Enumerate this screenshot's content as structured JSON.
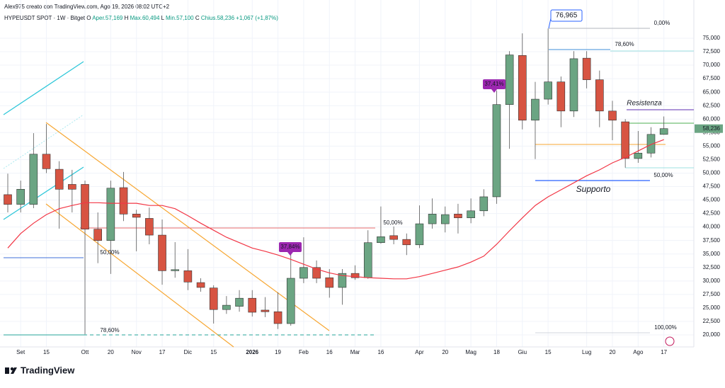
{
  "chart_data": {
    "type": "candlestick",
    "author_line": "Alex975 creato con TradingView.com, Ago 19, 2026 08:02 UTC+2",
    "symbol_line": "HYPEUSDT SPOT · 1W · Bitget",
    "ohlc_header": [
      "O",
      "Aper.57,169",
      "H",
      "Max.60,494",
      "L",
      "Min.57,100",
      "C",
      "Chius.58,236",
      "+1,067 (+1,87%)"
    ],
    "brand": "TradingView",
    "last_price_label": "58,236",
    "categories": [
      null,
      "Set",
      null,
      "15",
      null,
      null,
      "Ott",
      null,
      "20",
      null,
      "Nov",
      null,
      "17",
      null,
      "Dic",
      null,
      "15",
      null,
      null,
      "2026",
      null,
      "19",
      null,
      "Feb",
      null,
      "16",
      null,
      "Mar",
      null,
      "16",
      null,
      null,
      "Apr",
      null,
      "20",
      null,
      "Mag",
      null,
      "18",
      null,
      "Giu",
      null,
      "15",
      null,
      null,
      "Lug",
      null,
      "20",
      null,
      "Ago",
      null,
      "17"
    ],
    "ohlc": [
      [
        46000,
        49900,
        42700,
        44200
      ],
      [
        44200,
        48600,
        42700,
        47000
      ],
      [
        44200,
        57400,
        43500,
        53500
      ],
      [
        53500,
        59100,
        50000,
        50800
      ],
      [
        50700,
        52200,
        39700,
        47000
      ],
      [
        47900,
        50600,
        42700,
        47000
      ],
      [
        47900,
        48600,
        20100,
        39600
      ],
      [
        39600,
        42700,
        33300,
        37500
      ],
      [
        37500,
        48600,
        31300,
        47200
      ],
      [
        47300,
        50200,
        41100,
        42400
      ],
      [
        42400,
        43200,
        35500,
        41800
      ],
      [
        41600,
        43600,
        36800,
        38500
      ],
      [
        38500,
        41400,
        29300,
        31900
      ],
      [
        31900,
        37200,
        30600,
        32100
      ],
      [
        31900,
        35900,
        28300,
        29800
      ],
      [
        29700,
        30500,
        28000,
        28800
      ],
      [
        28700,
        29200,
        22100,
        24700
      ],
      [
        24700,
        27200,
        23900,
        25500
      ],
      [
        25300,
        28300,
        24300,
        26800
      ],
      [
        26800,
        28300,
        23400,
        24200
      ],
      [
        24600,
        27000,
        23300,
        24300
      ],
      [
        24300,
        27900,
        21100,
        22100
      ],
      [
        22100,
        35100,
        21700,
        30500
      ],
      [
        30500,
        38100,
        29600,
        32500
      ],
      [
        32500,
        33800,
        29600,
        30500
      ],
      [
        30600,
        32200,
        26900,
        28800
      ],
      [
        28800,
        32200,
        25600,
        31400
      ],
      [
        31400,
        32900,
        30200,
        30600
      ],
      [
        30600,
        39400,
        30400,
        37100
      ],
      [
        37100,
        43800,
        36900,
        38200
      ],
      [
        38400,
        40100,
        36800,
        37700
      ],
      [
        37700,
        38800,
        34800,
        36700
      ],
      [
        36700,
        44000,
        36100,
        40600
      ],
      [
        40600,
        45300,
        39700,
        42400
      ],
      [
        40600,
        43800,
        39000,
        42300
      ],
      [
        42400,
        44300,
        38800,
        41700
      ],
      [
        41700,
        45300,
        40700,
        43000
      ],
      [
        43000,
        47000,
        42000,
        45600
      ],
      [
        45600,
        65300,
        44300,
        62700
      ],
      [
        62700,
        72600,
        54500,
        71900
      ],
      [
        71800,
        75900,
        58100,
        59800
      ],
      [
        59800,
        66900,
        52600,
        63700
      ],
      [
        63700,
        76800,
        62700,
        66900
      ],
      [
        66900,
        67900,
        58500,
        61500
      ],
      [
        61500,
        72600,
        60400,
        71200
      ],
      [
        71300,
        72600,
        65700,
        67300
      ],
      [
        67300,
        69000,
        58500,
        61500
      ],
      [
        61500,
        63400,
        56100,
        59800
      ],
      [
        59500,
        60000,
        51000,
        52700
      ],
      [
        52700,
        57800,
        51900,
        53700
      ],
      [
        53700,
        58500,
        52900,
        57169
      ],
      [
        57169,
        60494,
        57100,
        58236
      ]
    ],
    "up_color": "#6ba583",
    "down_color": "#d75442",
    "moving_average": {
      "color": "#f23645",
      "values": [
        36100,
        38800,
        40700,
        42300,
        43400,
        44000,
        44500,
        44500,
        44400,
        44400,
        44400,
        44000,
        44000,
        43400,
        42100,
        40700,
        39400,
        38100,
        37100,
        36100,
        35500,
        34800,
        34000,
        33100,
        32200,
        31500,
        31000,
        30800,
        30600,
        30500,
        30400,
        30400,
        30800,
        31400,
        32000,
        32600,
        33500,
        34600,
        36800,
        39300,
        41700,
        44000,
        45600,
        46900,
        48200,
        49500,
        50600,
        51900,
        52900,
        54100,
        55300,
        56200
      ]
    },
    "ylim": [
      17770,
      80770
    ],
    "yticks": [
      {
        "value": 20000,
        "label": "20,000"
      },
      {
        "value": 22500,
        "label": "22,500"
      },
      {
        "value": 25000,
        "label": "25,000"
      },
      {
        "value": 27500,
        "label": "27,500"
      },
      {
        "value": 30000,
        "label": "30,000"
      },
      {
        "value": 32500,
        "label": "32,500"
      },
      {
        "value": 35000,
        "label": "35,000"
      },
      {
        "value": 37500,
        "label": "37,500"
      },
      {
        "value": 40000,
        "label": "40,000"
      },
      {
        "value": 42500,
        "label": "42,500"
      },
      {
        "value": 45000,
        "label": "45,000"
      },
      {
        "value": 47500,
        "label": "47,500"
      },
      {
        "value": 50000,
        "label": "50,000"
      },
      {
        "value": 52500,
        "label": "52,500"
      },
      {
        "value": 55000,
        "label": "55,000"
      },
      {
        "value": 57500,
        "label": "57,500"
      },
      {
        "value": 60000,
        "label": "60,000"
      },
      {
        "value": 62500,
        "label": "62,500"
      },
      {
        "value": 65000,
        "label": "65,000"
      },
      {
        "value": 67500,
        "label": "67,500"
      },
      {
        "value": 70000,
        "label": "70,000"
      },
      {
        "value": 72500,
        "label": "72,500"
      },
      {
        "value": 75000,
        "label": "75,000"
      }
    ],
    "grid": true,
    "annotations": [
      "76,965",
      "0,00%",
      "78,60%",
      "37,41%",
      "Resistenza",
      "50,00%",
      "Supporto",
      "50,00%",
      "37,84%",
      "50,00%",
      "78,60%",
      "100,00%"
    ]
  }
}
